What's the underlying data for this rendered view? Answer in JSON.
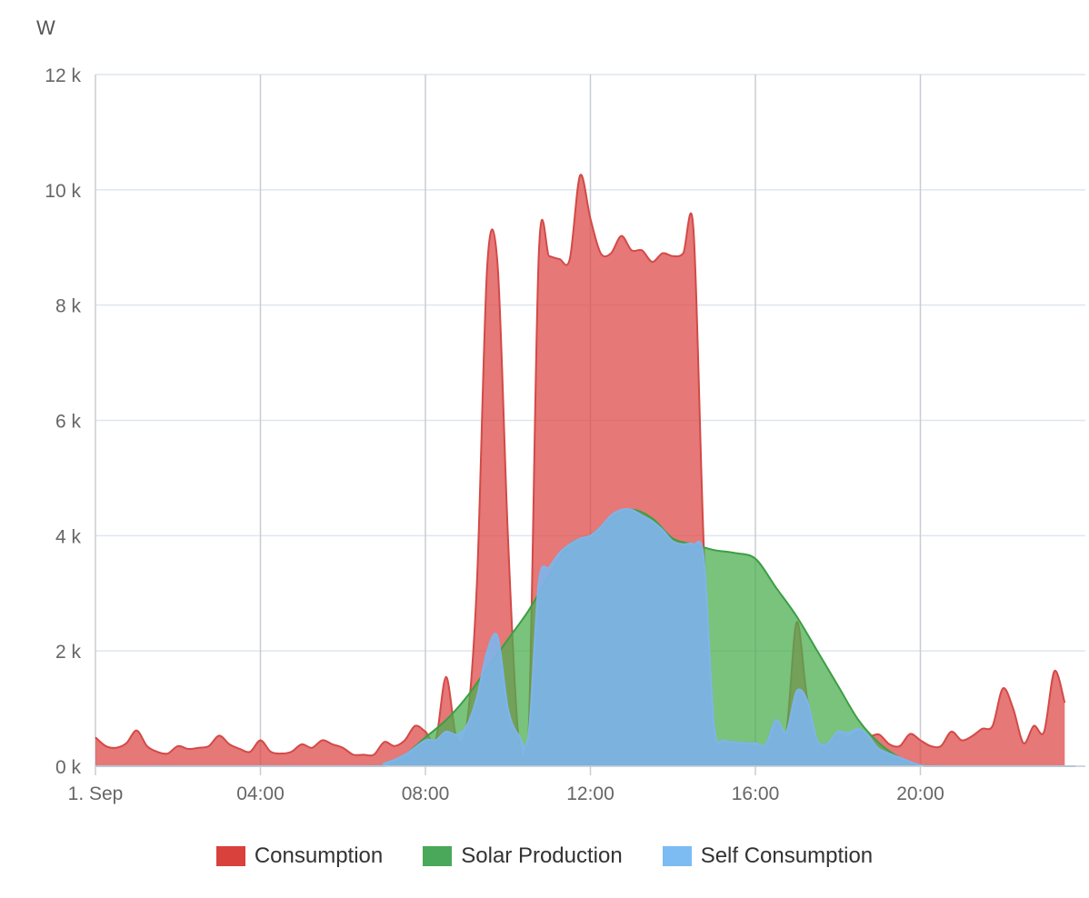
{
  "chart_data": {
    "type": "area",
    "ylabel": "W",
    "y_ticks": [
      "0 k",
      "2 k",
      "4 k",
      "6 k",
      "8 k",
      "10 k",
      "12 k"
    ],
    "y_tick_values": [
      0,
      2000,
      4000,
      6000,
      8000,
      10000,
      12000
    ],
    "ylim": [
      0,
      12000
    ],
    "x_ticks": [
      "1. Sep",
      "04:00",
      "08:00",
      "12:00",
      "16:00",
      "20:00"
    ],
    "x_tick_hours": [
      0,
      4,
      8,
      12,
      16,
      20
    ],
    "xlim_hours": [
      0,
      23.75
    ],
    "grid": true,
    "legend_position": "bottom",
    "series": [
      {
        "name": "Consumption",
        "color": "#dd4b4a",
        "points": [
          [
            0,
            500
          ],
          [
            0.25,
            350
          ],
          [
            0.5,
            320
          ],
          [
            0.75,
            400
          ],
          [
            1.0,
            620
          ],
          [
            1.25,
            350
          ],
          [
            1.5,
            250
          ],
          [
            1.75,
            220
          ],
          [
            2.0,
            350
          ],
          [
            2.25,
            300
          ],
          [
            2.5,
            320
          ],
          [
            2.75,
            350
          ],
          [
            3.0,
            530
          ],
          [
            3.25,
            380
          ],
          [
            3.5,
            300
          ],
          [
            3.75,
            250
          ],
          [
            4.0,
            450
          ],
          [
            4.25,
            250
          ],
          [
            4.5,
            220
          ],
          [
            4.75,
            250
          ],
          [
            5.0,
            380
          ],
          [
            5.25,
            320
          ],
          [
            5.5,
            450
          ],
          [
            5.75,
            380
          ],
          [
            6.0,
            320
          ],
          [
            6.25,
            200
          ],
          [
            6.5,
            200
          ],
          [
            6.75,
            200
          ],
          [
            7.0,
            420
          ],
          [
            7.25,
            350
          ],
          [
            7.5,
            450
          ],
          [
            7.75,
            700
          ],
          [
            8.0,
            600
          ],
          [
            8.25,
            450
          ],
          [
            8.5,
            1550
          ],
          [
            8.75,
            500
          ],
          [
            9.0,
            700
          ],
          [
            9.25,
            3200
          ],
          [
            9.5,
            8700
          ],
          [
            9.75,
            8700
          ],
          [
            10.0,
            4000
          ],
          [
            10.25,
            550
          ],
          [
            10.5,
            550
          ],
          [
            10.75,
            8900
          ],
          [
            11.0,
            8850
          ],
          [
            11.25,
            8800
          ],
          [
            11.5,
            8800
          ],
          [
            11.75,
            10250
          ],
          [
            12.0,
            9500
          ],
          [
            12.25,
            8900
          ],
          [
            12.5,
            8900
          ],
          [
            12.75,
            9200
          ],
          [
            13.0,
            8950
          ],
          [
            13.25,
            8950
          ],
          [
            13.5,
            8750
          ],
          [
            13.75,
            8900
          ],
          [
            14.0,
            8850
          ],
          [
            14.25,
            8900
          ],
          [
            14.5,
            9300
          ],
          [
            14.75,
            3800
          ],
          [
            15.0,
            700
          ],
          [
            15.25,
            450
          ],
          [
            15.5,
            420
          ],
          [
            15.75,
            400
          ],
          [
            16.0,
            400
          ],
          [
            16.25,
            380
          ],
          [
            16.5,
            800
          ],
          [
            16.75,
            600
          ],
          [
            17.0,
            2500
          ],
          [
            17.25,
            1200
          ],
          [
            17.5,
            450
          ],
          [
            17.75,
            400
          ],
          [
            18.0,
            550
          ],
          [
            18.25,
            500
          ],
          [
            18.5,
            600
          ],
          [
            18.75,
            520
          ],
          [
            19.0,
            550
          ],
          [
            19.25,
            380
          ],
          [
            19.5,
            350
          ],
          [
            19.75,
            560
          ],
          [
            20.0,
            450
          ],
          [
            20.25,
            350
          ],
          [
            20.5,
            350
          ],
          [
            20.75,
            600
          ],
          [
            21.0,
            450
          ],
          [
            21.25,
            520
          ],
          [
            21.5,
            650
          ],
          [
            21.75,
            700
          ],
          [
            22.0,
            1350
          ],
          [
            22.25,
            1000
          ],
          [
            22.5,
            400
          ],
          [
            22.75,
            700
          ],
          [
            23.0,
            600
          ],
          [
            23.25,
            1650
          ],
          [
            23.5,
            1100
          ]
        ]
      },
      {
        "name": "Solar Production",
        "color": "#4caf50",
        "points": [
          [
            0,
            0
          ],
          [
            6.5,
            0
          ],
          [
            7.0,
            50
          ],
          [
            7.5,
            200
          ],
          [
            8.0,
            500
          ],
          [
            8.5,
            800
          ],
          [
            9.0,
            1200
          ],
          [
            9.5,
            1700
          ],
          [
            10.0,
            2200
          ],
          [
            10.5,
            2700
          ],
          [
            11.0,
            3300
          ],
          [
            11.5,
            3850
          ],
          [
            12.0,
            4000
          ],
          [
            12.5,
            4300
          ],
          [
            13.0,
            4450
          ],
          [
            13.5,
            4300
          ],
          [
            14.0,
            3950
          ],
          [
            14.5,
            3850
          ],
          [
            15.0,
            3750
          ],
          [
            15.5,
            3700
          ],
          [
            16.0,
            3600
          ],
          [
            16.5,
            3100
          ],
          [
            17.0,
            2600
          ],
          [
            17.5,
            2000
          ],
          [
            18.0,
            1400
          ],
          [
            18.5,
            800
          ],
          [
            19.0,
            400
          ],
          [
            19.5,
            150
          ],
          [
            20.0,
            20
          ],
          [
            20.5,
            0
          ],
          [
            23.75,
            0
          ]
        ]
      },
      {
        "name": "Self Consumption",
        "color": "#7cb5ec",
        "points": [
          [
            0,
            0
          ],
          [
            6.5,
            0
          ],
          [
            7.0,
            50
          ],
          [
            7.5,
            200
          ],
          [
            8.0,
            450
          ],
          [
            8.25,
            450
          ],
          [
            8.5,
            600
          ],
          [
            8.75,
            550
          ],
          [
            9.0,
            700
          ],
          [
            9.25,
            1200
          ],
          [
            9.5,
            2000
          ],
          [
            9.75,
            2250
          ],
          [
            10.0,
            1000
          ],
          [
            10.25,
            550
          ],
          [
            10.5,
            550
          ],
          [
            10.75,
            3200
          ],
          [
            11.0,
            3450
          ],
          [
            11.25,
            3700
          ],
          [
            11.5,
            3850
          ],
          [
            11.75,
            3950
          ],
          [
            12.0,
            4000
          ],
          [
            12.25,
            4150
          ],
          [
            12.5,
            4350
          ],
          [
            12.75,
            4450
          ],
          [
            13.0,
            4450
          ],
          [
            13.25,
            4350
          ],
          [
            13.5,
            4250
          ],
          [
            13.75,
            4100
          ],
          [
            14.0,
            3900
          ],
          [
            14.25,
            3850
          ],
          [
            14.5,
            3850
          ],
          [
            14.75,
            3600
          ],
          [
            15.0,
            700
          ],
          [
            15.25,
            450
          ],
          [
            15.5,
            420
          ],
          [
            15.75,
            400
          ],
          [
            16.0,
            400
          ],
          [
            16.25,
            380
          ],
          [
            16.5,
            800
          ],
          [
            16.75,
            600
          ],
          [
            17.0,
            1300
          ],
          [
            17.25,
            1150
          ],
          [
            17.5,
            450
          ],
          [
            17.75,
            400
          ],
          [
            18.0,
            600
          ],
          [
            18.25,
            580
          ],
          [
            18.5,
            650
          ],
          [
            18.75,
            520
          ],
          [
            19.0,
            300
          ],
          [
            19.5,
            150
          ],
          [
            20.0,
            20
          ],
          [
            20.5,
            0
          ],
          [
            23.75,
            0
          ]
        ]
      }
    ]
  }
}
